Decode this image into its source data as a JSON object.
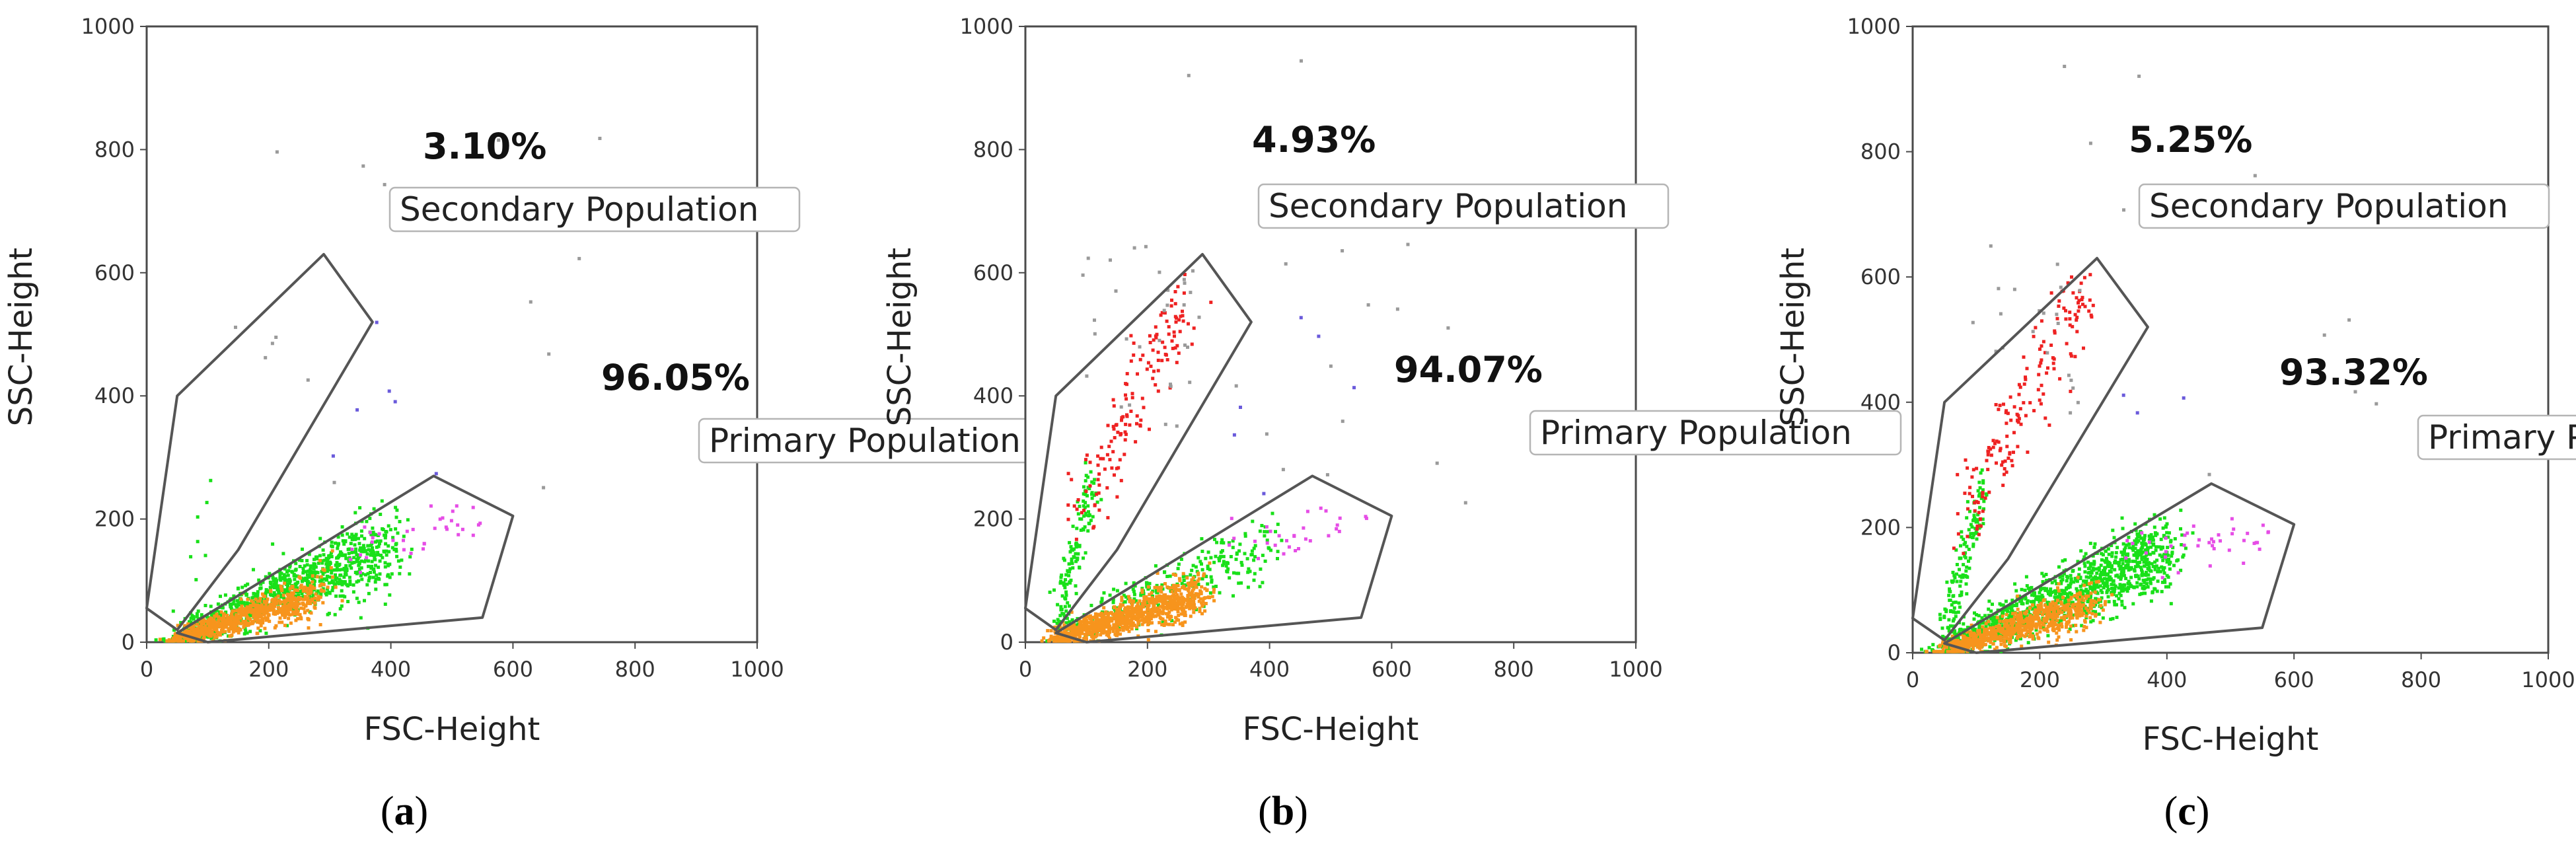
{
  "colors": {
    "green": "#19e019",
    "orange": "#f7941d",
    "red": "#ee2222",
    "magenta": "#e64de6",
    "purple": "#6a5adb",
    "gray": "#9a9a9a",
    "gate": "#555555",
    "frame": "#4a4a4a"
  },
  "chart_data": [
    {
      "type": "scatter",
      "panel_label": {
        "open": "(",
        "letter": "a",
        "close": ")"
      },
      "xlabel": "FSC-Height",
      "ylabel": "SSC-Height",
      "xlim": [
        0,
        1000
      ],
      "ylim": [
        0,
        1000
      ],
      "x_ticks": [
        "0",
        "200",
        "400",
        "600",
        "800",
        "1000"
      ],
      "y_ticks": [
        "0",
        "200",
        "400",
        "600",
        "800",
        "1000"
      ],
      "gates": [
        {
          "name": "Secondary Population",
          "percent": "3.10%",
          "polygon": [
            [
              0,
              55
            ],
            [
              50,
              20
            ],
            [
              150,
              150
            ],
            [
              370,
              520
            ],
            [
              290,
              630
            ],
            [
              50,
              400
            ]
          ]
        },
        {
          "name": "Primary Population",
          "percent": "96.05%",
          "polygon": [
            [
              50,
              15
            ],
            [
              470,
              270
            ],
            [
              600,
              205
            ],
            [
              550,
              40
            ],
            [
              100,
              0
            ]
          ]
        }
      ],
      "populations": {
        "secondary_red": 0,
        "secondary_green": 8,
        "secondary_gray": 4,
        "primary_green": 950,
        "primary_orange": 750,
        "magenta": 35,
        "purple": 6,
        "outlier_gray": 12
      }
    },
    {
      "type": "scatter",
      "panel_label": {
        "open": "(",
        "letter": "b",
        "close": ")"
      },
      "xlabel": "FSC-Height",
      "ylabel": "SSC-Height",
      "xlim": [
        0,
        1000
      ],
      "ylim": [
        0,
        1000
      ],
      "x_ticks": [
        "0",
        "200",
        "400",
        "600",
        "800",
        "1000"
      ],
      "y_ticks": [
        "0",
        "200",
        "400",
        "600",
        "800",
        "1000"
      ],
      "gates": [
        {
          "name": "Secondary Population",
          "percent": "4.93%",
          "polygon": [
            [
              0,
              55
            ],
            [
              50,
              20
            ],
            [
              150,
              150
            ],
            [
              370,
              520
            ],
            [
              290,
              630
            ],
            [
              50,
              400
            ]
          ]
        },
        {
          "name": "Primary Population",
          "percent": "94.07%",
          "polygon": [
            [
              50,
              15
            ],
            [
              470,
              270
            ],
            [
              600,
              205
            ],
            [
              550,
              40
            ],
            [
              100,
              0
            ]
          ]
        }
      ],
      "populations": {
        "secondary_red": 150,
        "secondary_green": 130,
        "secondary_gray": 30,
        "primary_green": 280,
        "primary_orange": 1000,
        "magenta": 30,
        "purple": 6,
        "outlier_gray": 18
      }
    },
    {
      "type": "scatter",
      "panel_label": {
        "open": "(",
        "letter": "c",
        "close": ")"
      },
      "xlabel": "FSC-Height",
      "ylabel": "SSC-Height",
      "xlim": [
        0,
        1000
      ],
      "ylim": [
        0,
        1000
      ],
      "x_ticks": [
        "0",
        "200",
        "400",
        "600",
        "800",
        "1000"
      ],
      "y_ticks": [
        "0",
        "200",
        "400",
        "600",
        "800",
        "1000"
      ],
      "gates": [
        {
          "name": "Secondary Population",
          "percent": "5.25%",
          "polygon": [
            [
              0,
              55
            ],
            [
              50,
              20
            ],
            [
              150,
              150
            ],
            [
              370,
              520
            ],
            [
              290,
              630
            ],
            [
              50,
              400
            ]
          ]
        },
        {
          "name": "Primary Population",
          "percent": "93.32%",
          "polygon": [
            [
              50,
              15
            ],
            [
              470,
              270
            ],
            [
              600,
              205
            ],
            [
              550,
              40
            ],
            [
              100,
              0
            ]
          ]
        }
      ],
      "populations": {
        "secondary_red": 170,
        "secondary_green": 140,
        "secondary_gray": 20,
        "primary_green": 1200,
        "primary_orange": 700,
        "magenta": 40,
        "purple": 3,
        "outlier_gray": 12
      }
    }
  ]
}
